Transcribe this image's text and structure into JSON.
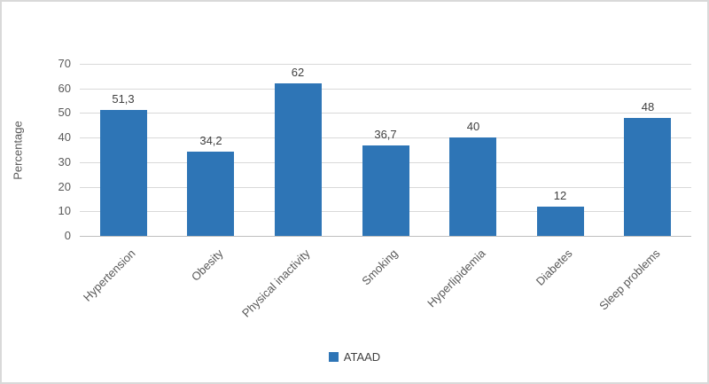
{
  "chart_data": {
    "type": "bar",
    "categories": [
      "Hypertension",
      "Obesity",
      "Physical inactivity",
      "Smoking",
      "Hyperlipidemia",
      "Diabetes",
      "Sleep problems"
    ],
    "values": [
      51.3,
      34.2,
      62,
      36.7,
      40,
      12,
      48
    ],
    "value_labels": [
      "51,3",
      "34,2",
      "62",
      "36,7",
      "40",
      "12",
      "48"
    ],
    "series_name": "ATAAD",
    "title": "",
    "xlabel": "",
    "ylabel": "Percentage",
    "ylim": [
      0,
      70
    ],
    "yticks": [
      0,
      10,
      20,
      30,
      40,
      50,
      60,
      70
    ],
    "grid": true,
    "legend_position": "bottom-center",
    "colors": {
      "bar": "#2e75b6",
      "gridline": "#d9d9d9",
      "axis_line": "#bfbfbf",
      "tick_text": "#595959",
      "data_label_text": "#3f3f3f",
      "border": "#d9d9d9",
      "background": "#ffffff"
    }
  }
}
